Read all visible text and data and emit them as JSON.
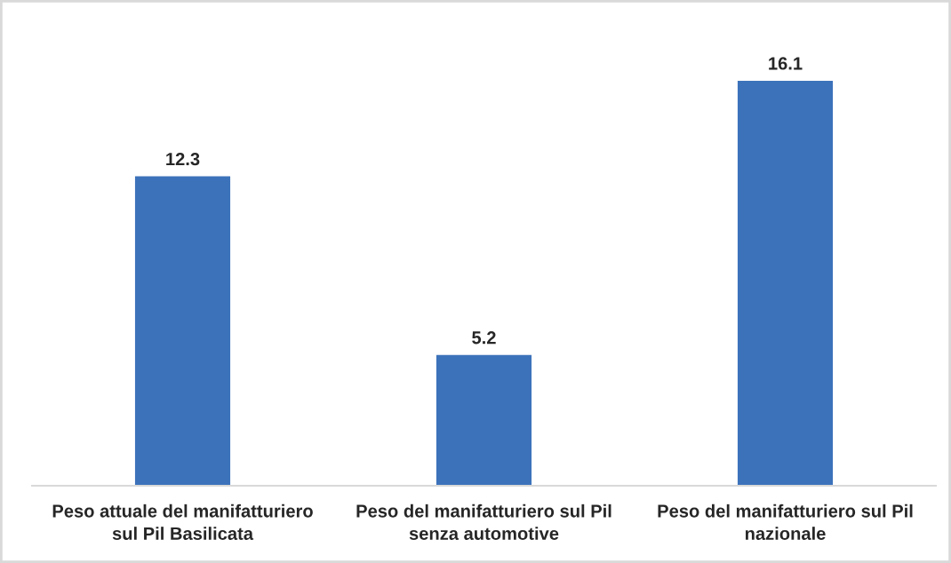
{
  "chart_data": {
    "type": "bar",
    "categories": [
      "Peso attuale del manifatturiero\nsul Pil Basilicata",
      "Peso del manifatturiero sul Pil\nsenza automotive",
      "Peso del manifatturiero sul Pil\nnazionale"
    ],
    "values": [
      12.3,
      5.2,
      16.1
    ],
    "color": "#3c72ba",
    "data_labels": true,
    "grid": false,
    "legend": false,
    "tick_labels": "x"
  }
}
